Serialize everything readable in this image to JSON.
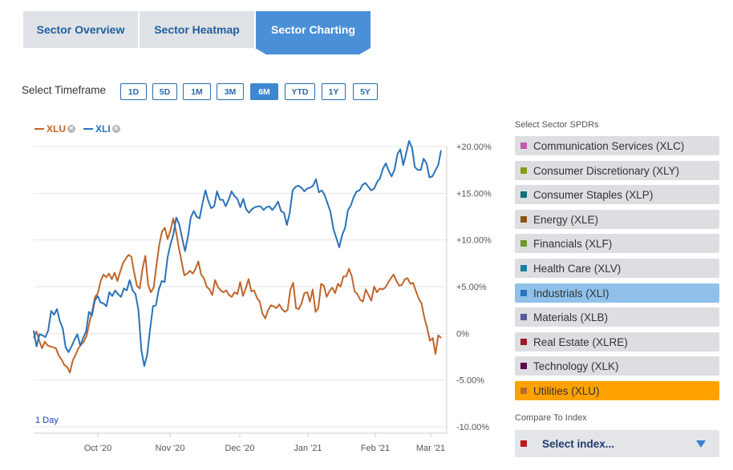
{
  "tabs": [
    {
      "label": "Sector Overview",
      "active": false
    },
    {
      "label": "Sector Heatmap",
      "active": false
    },
    {
      "label": "Sector Charting",
      "active": true
    }
  ],
  "timeframe": {
    "label": "Select Timeframe",
    "options": [
      "1D",
      "5D",
      "1M",
      "3M",
      "6M",
      "YTD",
      "1Y",
      "5Y"
    ],
    "selected": "6M"
  },
  "legend": [
    {
      "name": "XLU",
      "color": "#c0652a"
    },
    {
      "name": "XLI",
      "color": "#2a73b8"
    }
  ],
  "interval_label": "1 Day",
  "chart_data": {
    "type": "line",
    "x_labels": [
      "Oct '20",
      "Nov '20",
      "Dec '20",
      "Jan '21",
      "Feb '21",
      "Mar '21"
    ],
    "y_ticks": [
      "+20.00%",
      "+15.00%",
      "+10.00%",
      "+5.00%",
      "0%",
      "-5.00%",
      "-10.00%"
    ],
    "ylim": [
      -10,
      20
    ],
    "y_axis_position": "right",
    "grid": true,
    "legend_placement": "top-left",
    "series": [
      {
        "name": "XLU",
        "color": "#c0652a",
        "values": [
          -0.5,
          0.2,
          -0.8,
          -1.6,
          -0.9,
          -1.3,
          -1.4,
          -1.5,
          -1.6,
          -2.4,
          -2.8,
          -3.4,
          -3.6,
          -4.2,
          -2.9,
          -2.3,
          -1.6,
          -1.2,
          -0.9,
          -0.2,
          1.2,
          2.4,
          3.9,
          4.3,
          5.6,
          6.3,
          6.0,
          6.4,
          5.8,
          6.5,
          5.6,
          6.6,
          7.5,
          8.0,
          8.4,
          8.2,
          6.5,
          5.1,
          4.8,
          6.9,
          8.3,
          5.2,
          4.4,
          4.9,
          7.3,
          9.5,
          10.9,
          11.3,
          10.1,
          11.0,
          12.3,
          10.9,
          9.2,
          7.7,
          6.2,
          6.4,
          6.7,
          6.4,
          6.9,
          7.7,
          6.3,
          5.9,
          5.0,
          4.7,
          4.1,
          5.7,
          5.0,
          4.6,
          4.4,
          4.6,
          4.1,
          3.9,
          4.4,
          4.2,
          5.5,
          4.0,
          4.8,
          5.8,
          4.5,
          4.6,
          3.8,
          3.4,
          2.1,
          1.6,
          2.5,
          3.0,
          2.9,
          2.7,
          3.1,
          2.6,
          2.3,
          2.5,
          4.7,
          5.4,
          2.7,
          2.6,
          3.2,
          4.3,
          4.4,
          3.4,
          4.7,
          2.3,
          2.7,
          5.3,
          5.1,
          3.9,
          4.5,
          4.9,
          4.3,
          5.3,
          5.0,
          6.1,
          6.1,
          6.9,
          6.1,
          4.5,
          4.2,
          3.6,
          3.4,
          4.7,
          4.1,
          3.5,
          5.0,
          4.4,
          4.8,
          4.7,
          4.9,
          5.4,
          5.9,
          6.3,
          5.6,
          5.1,
          5.2,
          5.8,
          5.9,
          5.3,
          5.4,
          4.5,
          3.7,
          3.2,
          1.7,
          0.6,
          -0.8,
          -0.5,
          -2.2,
          -0.2,
          -0.5
        ]
      },
      {
        "name": "XLI",
        "color": "#2a73b8",
        "values": [
          0.3,
          -1.4,
          -0.1,
          -0.2,
          -0.4,
          0.3,
          2.4,
          2.0,
          2.6,
          1.3,
          0.5,
          -1.5,
          -2.0,
          -1.4,
          -0.7,
          -0.1,
          -1.3,
          -0.5,
          0.2,
          2.3,
          1.9,
          3.5,
          4.0,
          3.3,
          3.2,
          2.9,
          4.4,
          4.0,
          4.6,
          4.2,
          3.9,
          4.8,
          4.6,
          5.7,
          4.6,
          4.2,
          2.5,
          -1.8,
          -3.5,
          -2.3,
          0.4,
          2.9,
          3.0,
          4.7,
          5.6,
          5.5,
          8.1,
          9.5,
          10.6,
          12.4,
          11.7,
          10.2,
          8.8,
          10.3,
          12.4,
          13.1,
          12.5,
          12.3,
          13.9,
          15.3,
          14.2,
          13.4,
          13.6,
          15.2,
          14.3,
          14.3,
          13.6,
          14.3,
          15.2,
          14.7,
          14.4,
          13.5,
          14.4,
          13.3,
          12.9,
          13.3,
          13.5,
          13.6,
          13.6,
          13.2,
          13.5,
          13.6,
          13.2,
          13.6,
          14.1,
          13.1,
          12.9,
          11.6,
          12.9,
          15.3,
          15.7,
          15.8,
          15.6,
          15.2,
          15.5,
          15.6,
          15.8,
          16.5,
          15.1,
          15.3,
          14.8,
          13.9,
          13.0,
          11.2,
          10.2,
          9.2,
          10.5,
          11.3,
          13.2,
          13.7,
          14.6,
          15.2,
          15.3,
          15.9,
          16.1,
          15.7,
          15.3,
          15.5,
          16.2,
          16.6,
          17.6,
          18.2,
          17.4,
          16.8,
          17.5,
          19.2,
          19.7,
          18.0,
          19.3,
          20.6,
          19.9,
          17.8,
          17.5,
          17.5,
          18.7,
          18.2,
          16.7,
          16.8,
          17.4,
          18.0,
          19.6
        ]
      }
    ]
  },
  "sector_panel": {
    "title": "Select Sector SPDRs",
    "items": [
      {
        "label": "Communication Services (XLC)",
        "color": "#c259ad",
        "selected": false
      },
      {
        "label": "Consumer Discretionary (XLY)",
        "color": "#8a9a12",
        "selected": false
      },
      {
        "label": "Consumer Staples (XLP)",
        "color": "#12707a",
        "selected": false
      },
      {
        "label": "Energy (XLE)",
        "color": "#8a5414",
        "selected": false
      },
      {
        "label": "Financials (XLF)",
        "color": "#6b9a2a",
        "selected": false
      },
      {
        "label": "Health Care (XLV)",
        "color": "#1a7ea0",
        "selected": false
      },
      {
        "label": "Industrials (XLI)",
        "color": "#2a73b8",
        "selected": true
      },
      {
        "label": "Materials (XLB)",
        "color": "#5a5a9a",
        "selected": false
      },
      {
        "label": "Real Estate (XLRE)",
        "color": "#9a1a25",
        "selected": false
      },
      {
        "label": "Technology (XLK)",
        "color": "#5a0a4a",
        "selected": false
      },
      {
        "label": "Utilities (XLU)",
        "color": "#b8682a",
        "selected": true
      }
    ]
  },
  "compare": {
    "title": "Compare To Index",
    "placeholder": "Select index...",
    "color": "#c0171f"
  }
}
